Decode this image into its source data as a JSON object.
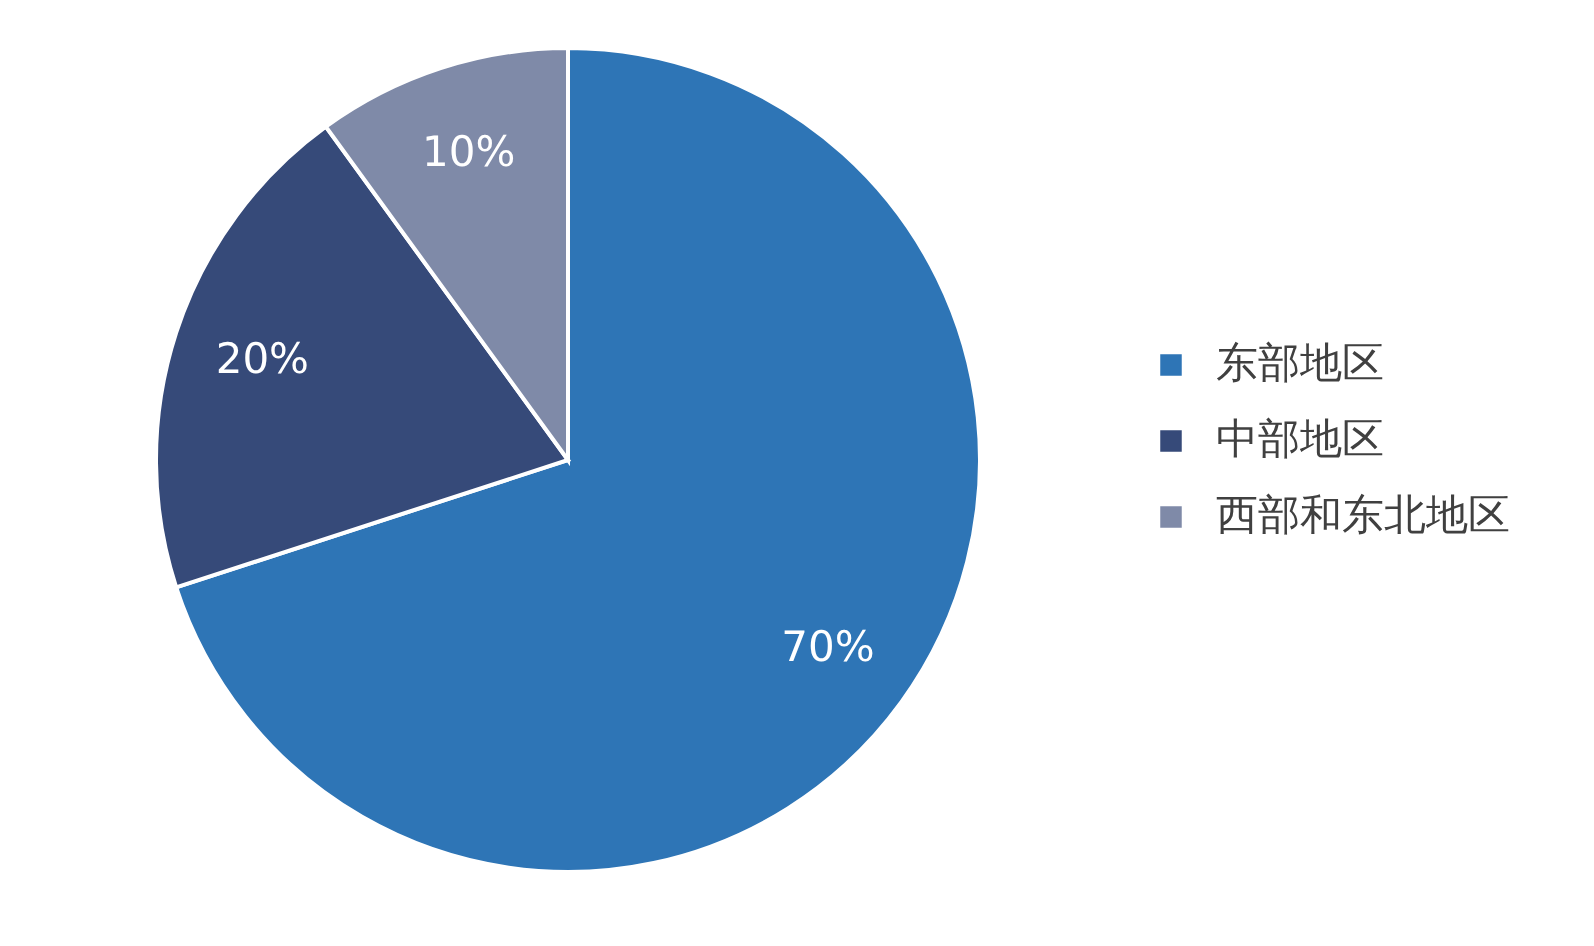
{
  "chart_data": {
    "type": "pie",
    "categories": [
      "东部地区",
      "中部地区",
      "西部和东北地区"
    ],
    "values": [
      70,
      20,
      10
    ],
    "colors": [
      "#2e75b6",
      "#364a79",
      "#7f8aa8"
    ],
    "value_labels": [
      "70%",
      "20%",
      "10%"
    ],
    "legend": "right"
  }
}
